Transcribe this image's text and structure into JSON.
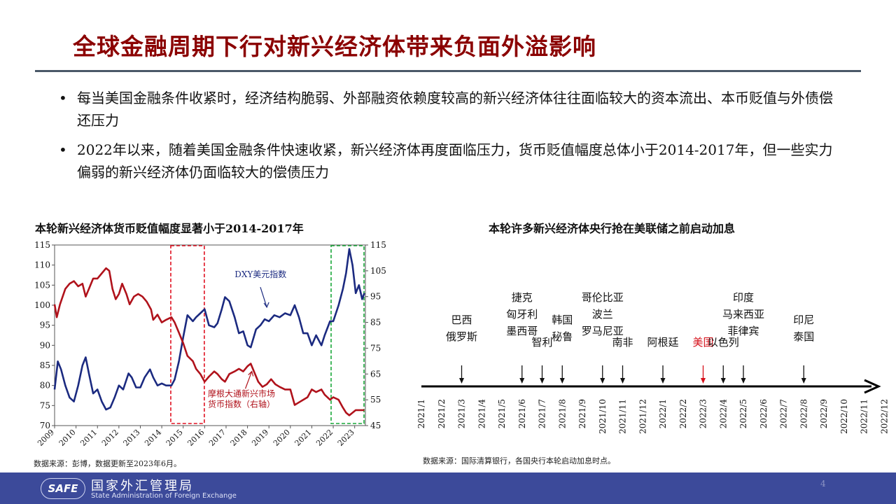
{
  "header": {
    "title": "全球金融周期下行对新兴经济体带来负面外溢影响"
  },
  "bullets": [
    "每当美国金融条件收紧时，经济结构脆弱、外部融资依赖度较高的新兴经济体往往面临较大的资本流出、本币贬值与外债偿还压力",
    "2022年以来，随着美国金融条件快速收紧，新兴经济体再度面临压力，货币贬值幅度总体小于2014-2017年，但一些实力偏弱的新兴经济体仍面临较大的偿债压力"
  ],
  "bullet_symbol": "•",
  "colors": {
    "title": "#8b0000",
    "dxy": "#1b2a80",
    "em": "#b0121b",
    "box_red": "#e01020",
    "box_green": "#1aa83a",
    "fed": "#d6101a"
  },
  "left_chart": {
    "title": "本轮新兴经济体货币贬值幅度显著小于2014-2017年",
    "source": "数据来源：彭博，数据更新至2023年6月。"
  },
  "right_chart": {
    "title": "本轮许多新兴经济体央行抢在美联储之前启动加息",
    "source": "数据来源：国际清算银行，各国央行本轮启动加息时点。"
  },
  "chart_data": [
    {
      "type": "line",
      "title": "本轮新兴经济体货币贬值幅度显著小于2014-2017年",
      "x_ticks": [
        "2009",
        "2010",
        "2011",
        "2012",
        "2013",
        "2014",
        "2015",
        "2016",
        "2017",
        "2018",
        "2019",
        "2020",
        "2021",
        "2022",
        "2023"
      ],
      "xlim": [
        2009,
        2023.5
      ],
      "y_left_ticks": [
        "70",
        "75",
        "80",
        "85",
        "90",
        "95",
        "100",
        "105",
        "110",
        "115"
      ],
      "ylim_left": [
        70,
        115
      ],
      "y_right_ticks": [
        "45",
        "55",
        "65",
        "75",
        "85",
        "95",
        "105",
        "115"
      ],
      "ylim_right": [
        45,
        115
      ],
      "series": [
        {
          "name": "DXY美元指数",
          "axis": "left",
          "points": [
            [
              2009.0,
              79
            ],
            [
              2009.15,
              86
            ],
            [
              2009.3,
              84
            ],
            [
              2009.5,
              80
            ],
            [
              2009.7,
              77
            ],
            [
              2009.9,
              76
            ],
            [
              2010.1,
              80
            ],
            [
              2010.3,
              85
            ],
            [
              2010.45,
              87
            ],
            [
              2010.6,
              83
            ],
            [
              2010.8,
              78
            ],
            [
              2011.0,
              79
            ],
            [
              2011.2,
              76
            ],
            [
              2011.4,
              74
            ],
            [
              2011.6,
              74.5
            ],
            [
              2011.8,
              77
            ],
            [
              2012.0,
              80
            ],
            [
              2012.2,
              79
            ],
            [
              2012.45,
              83
            ],
            [
              2012.6,
              82
            ],
            [
              2012.8,
              79.5
            ],
            [
              2013.0,
              79.5
            ],
            [
              2013.2,
              82
            ],
            [
              2013.45,
              84
            ],
            [
              2013.6,
              82
            ],
            [
              2013.8,
              80
            ],
            [
              2014.0,
              80.5
            ],
            [
              2014.2,
              80
            ],
            [
              2014.45,
              80
            ],
            [
              2014.6,
              81.5
            ],
            [
              2014.8,
              86
            ],
            [
              2015.0,
              92
            ],
            [
              2015.2,
              97.5
            ],
            [
              2015.45,
              96
            ],
            [
              2015.6,
              97
            ],
            [
              2015.8,
              98
            ],
            [
              2016.0,
              99
            ],
            [
              2016.2,
              95
            ],
            [
              2016.45,
              94.5
            ],
            [
              2016.6,
              95.5
            ],
            [
              2016.8,
              99
            ],
            [
              2016.95,
              102
            ],
            [
              2017.15,
              101
            ],
            [
              2017.4,
              97
            ],
            [
              2017.6,
              93
            ],
            [
              2017.8,
              93.5
            ],
            [
              2018.0,
              90
            ],
            [
              2018.15,
              89.5
            ],
            [
              2018.4,
              94
            ],
            [
              2018.6,
              95
            ],
            [
              2018.8,
              96.5
            ],
            [
              2019.0,
              96
            ],
            [
              2019.25,
              97.5
            ],
            [
              2019.5,
              97
            ],
            [
              2019.75,
              98
            ],
            [
              2020.0,
              97.5
            ],
            [
              2020.2,
              100
            ],
            [
              2020.4,
              97
            ],
            [
              2020.6,
              93
            ],
            [
              2020.8,
              93
            ],
            [
              2021.0,
              90
            ],
            [
              2021.2,
              92.5
            ],
            [
              2021.45,
              90
            ],
            [
              2021.6,
              92.5
            ],
            [
              2021.85,
              96
            ],
            [
              2022.0,
              96
            ],
            [
              2022.25,
              100
            ],
            [
              2022.45,
              104
            ],
            [
              2022.6,
              108
            ],
            [
              2022.75,
              114
            ],
            [
              2022.9,
              110
            ],
            [
              2023.05,
              103
            ],
            [
              2023.2,
              105
            ],
            [
              2023.35,
              101.5
            ],
            [
              2023.45,
              103
            ]
          ]
        },
        {
          "name": "摩根大通新兴市场货币指数（右轴）",
          "axis": "right",
          "points": [
            [
              2009.0,
              92
            ],
            [
              2009.1,
              87
            ],
            [
              2009.25,
              92
            ],
            [
              2009.5,
              98
            ],
            [
              2009.7,
              100
            ],
            [
              2009.9,
              101
            ],
            [
              2010.1,
              99
            ],
            [
              2010.3,
              100
            ],
            [
              2010.45,
              95
            ],
            [
              2010.6,
              98
            ],
            [
              2010.8,
              102
            ],
            [
              2011.0,
              102
            ],
            [
              2011.2,
              104
            ],
            [
              2011.4,
              106
            ],
            [
              2011.55,
              105
            ],
            [
              2011.7,
              98
            ],
            [
              2011.85,
              94
            ],
            [
              2012.0,
              96
            ],
            [
              2012.15,
              100
            ],
            [
              2012.35,
              96
            ],
            [
              2012.5,
              92
            ],
            [
              2012.7,
              95
            ],
            [
              2012.9,
              96
            ],
            [
              2013.1,
              95
            ],
            [
              2013.3,
              93
            ],
            [
              2013.5,
              90
            ],
            [
              2013.6,
              86
            ],
            [
              2013.8,
              88
            ],
            [
              2014.0,
              85
            ],
            [
              2014.2,
              86
            ],
            [
              2014.45,
              87
            ],
            [
              2014.6,
              85
            ],
            [
              2014.8,
              81
            ],
            [
              2015.0,
              77
            ],
            [
              2015.2,
              72
            ],
            [
              2015.45,
              70
            ],
            [
              2015.6,
              67
            ],
            [
              2015.8,
              65
            ],
            [
              2016.0,
              62
            ],
            [
              2016.2,
              64
            ],
            [
              2016.45,
              66
            ],
            [
              2016.6,
              65
            ],
            [
              2016.8,
              63
            ],
            [
              2016.95,
              62
            ],
            [
              2017.15,
              65
            ],
            [
              2017.4,
              66
            ],
            [
              2017.6,
              67
            ],
            [
              2017.8,
              66
            ],
            [
              2018.0,
              68
            ],
            [
              2018.15,
              69
            ],
            [
              2018.35,
              65
            ],
            [
              2018.5,
              62
            ],
            [
              2018.7,
              60
            ],
            [
              2018.9,
              61
            ],
            [
              2019.1,
              63
            ],
            [
              2019.3,
              61
            ],
            [
              2019.5,
              60
            ],
            [
              2019.75,
              59
            ],
            [
              2020.0,
              59
            ],
            [
              2020.2,
              53
            ],
            [
              2020.4,
              54
            ],
            [
              2020.6,
              55
            ],
            [
              2020.8,
              56
            ],
            [
              2021.0,
              59
            ],
            [
              2021.2,
              58
            ],
            [
              2021.45,
              59
            ],
            [
              2021.6,
              57
            ],
            [
              2021.85,
              55
            ],
            [
              2022.0,
              56
            ],
            [
              2022.25,
              55
            ],
            [
              2022.45,
              52
            ],
            [
              2022.6,
              50
            ],
            [
              2022.75,
              49
            ],
            [
              2022.9,
              50
            ],
            [
              2023.05,
              51
            ],
            [
              2023.2,
              51
            ],
            [
              2023.35,
              51
            ],
            [
              2023.45,
              51
            ]
          ]
        }
      ],
      "shaded_periods": [
        {
          "color": "red",
          "from": 2014.42,
          "to": 2016.05
        },
        {
          "color": "green",
          "from": 2021.9,
          "to": 2023.5
        }
      ]
    },
    {
      "type": "timeline",
      "title": "本轮许多新兴经济体央行抢在美联储之前启动加息",
      "months": [
        "2021/1",
        "2021/2",
        "2021/3",
        "2021/4",
        "2021/5",
        "2021/6",
        "2021/7",
        "2021/8",
        "2021/9",
        "2021/10",
        "2021/11",
        "2021/12",
        "2022/1",
        "2022/2",
        "2022/3",
        "2022/4",
        "2022/5",
        "2022/6",
        "2022/7",
        "2022/8",
        "2022/9",
        "2022/10",
        "2022/11",
        "2022/12"
      ],
      "events": [
        {
          "month": "2021/3",
          "labels": [
            "巴西",
            "俄罗斯"
          ]
        },
        {
          "month": "2021/6",
          "labels": [
            "捷克",
            "匈牙利",
            "墨西哥"
          ]
        },
        {
          "month": "2021/7",
          "labels": [
            "智利"
          ]
        },
        {
          "month": "2021/8",
          "labels": [
            "韩国",
            "秘鲁"
          ]
        },
        {
          "month": "2021/10",
          "labels": [
            "哥伦比亚",
            "波兰",
            "罗马尼亚"
          ]
        },
        {
          "month": "2021/11",
          "labels": [
            "南非"
          ]
        },
        {
          "month": "2022/1",
          "labels": [
            "阿根廷"
          ]
        },
        {
          "month": "2022/3",
          "labels": [
            "美国"
          ],
          "highlight": true
        },
        {
          "month": "2022/4",
          "labels": [
            "以色列"
          ]
        },
        {
          "month": "2022/5",
          "labels": [
            "印度",
            "马来西亚",
            "菲律宾"
          ]
        },
        {
          "month": "2022/8",
          "labels": [
            "印尼",
            "泰国"
          ]
        }
      ]
    }
  ],
  "footer": {
    "logo": "SAFE",
    "org_cn": "国家外汇管理局",
    "org_en": "State Administration of Foreign Exchange",
    "page": "4"
  }
}
